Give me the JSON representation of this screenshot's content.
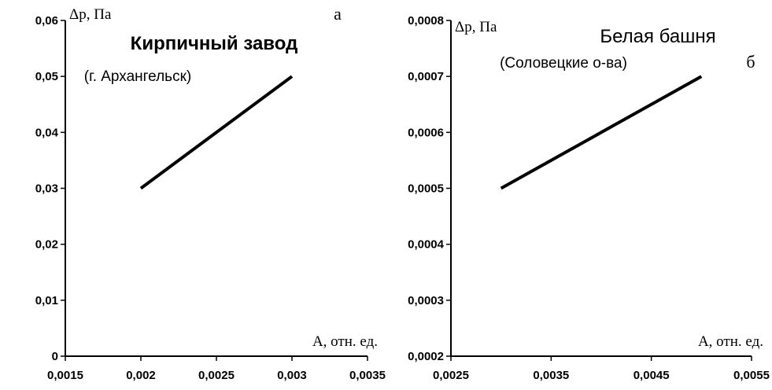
{
  "chart_data": [
    {
      "type": "line",
      "panel_label": "а",
      "title": "Кирпичный завод",
      "subtitle": "(г. Архангельск)",
      "ylabel": "Δp, Па",
      "xlabel": "A, отн. ед.",
      "xlim": [
        0.0015,
        0.0035
      ],
      "ylim": [
        0,
        0.06
      ],
      "x_ticks": [
        "0,0015",
        "0,002",
        "0,0025",
        "0,003",
        "0,0035"
      ],
      "y_ticks": [
        "0",
        "0,01",
        "0,02",
        "0,03",
        "0,04",
        "0,05",
        "0,06"
      ],
      "series": [
        {
          "x": [
            0.002,
            0.003
          ],
          "y": [
            0.03,
            0.05
          ]
        }
      ],
      "grid": false,
      "title_style": "bold"
    },
    {
      "type": "line",
      "panel_label": "б",
      "title": "Белая башня",
      "subtitle": "(Соловецкие о-ва)",
      "ylabel": "Δp, Па",
      "xlabel": "A, отн. ед.",
      "xlim": [
        0.0025,
        0.0055
      ],
      "ylim": [
        0.0002,
        0.0008
      ],
      "x_ticks": [
        "0,0025",
        "0,0035",
        "0,0045",
        "0,0055"
      ],
      "y_ticks": [
        "0,0002",
        "0,0003",
        "0,0004",
        "0,0005",
        "0,0006",
        "0,0007",
        "0,0008"
      ],
      "series": [
        {
          "x": [
            0.003,
            0.005
          ],
          "y": [
            0.0005,
            0.0007
          ]
        }
      ],
      "grid": false,
      "title_style": "regular"
    }
  ]
}
